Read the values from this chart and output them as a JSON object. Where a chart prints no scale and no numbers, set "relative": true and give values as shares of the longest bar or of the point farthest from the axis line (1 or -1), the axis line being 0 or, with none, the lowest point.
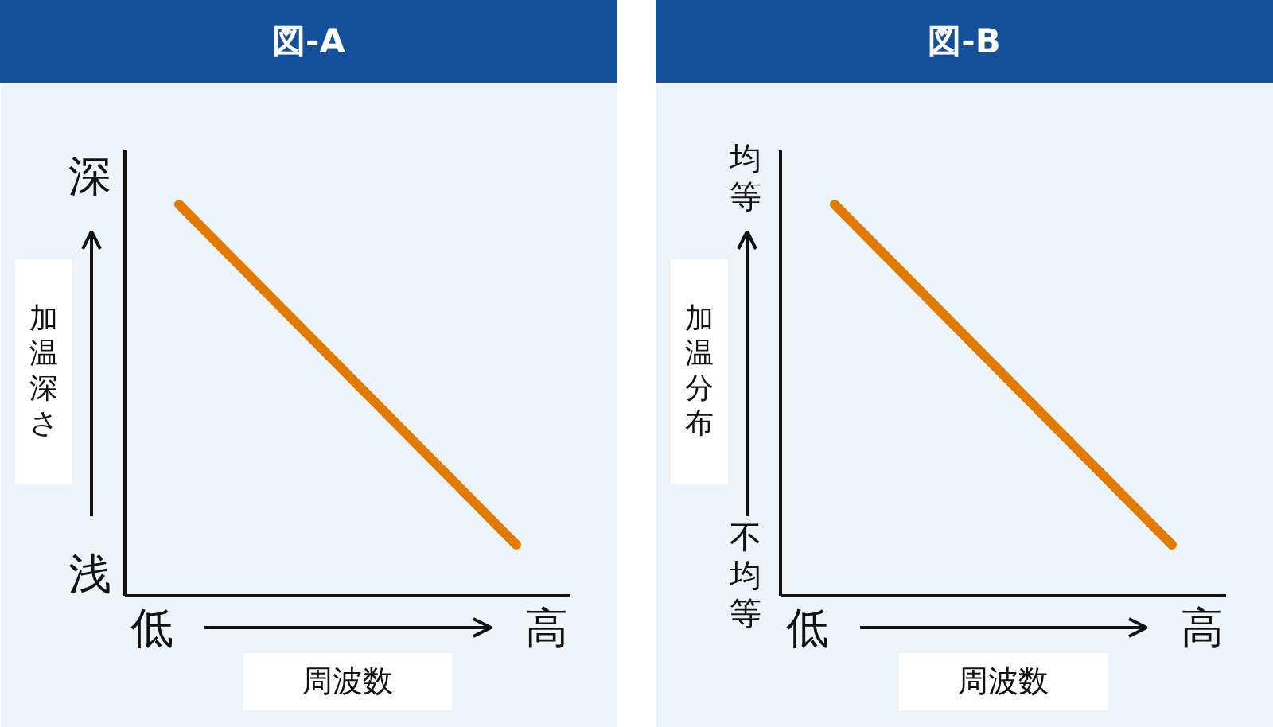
{
  "chart_data": [
    {
      "type": "line",
      "title": "図-A",
      "xlabel": "周波数",
      "ylabel": "加温深さ",
      "categories": [
        null,
        null
      ],
      "values": [
        1,
        0.13
      ],
      "color": "#e07b00",
      "relative": true,
      "annotations": [
        "深",
        "浅",
        "低",
        "高"
      ]
    },
    {
      "type": "line",
      "title": "図-B",
      "xlabel": "周波数",
      "ylabel": "加温分布",
      "categories": [
        null,
        null
      ],
      "values": [
        1,
        0.13
      ],
      "color": "#e07b00",
      "relative": true,
      "annotations": [
        "均等",
        "不均等",
        "低",
        "高"
      ]
    }
  ]
}
